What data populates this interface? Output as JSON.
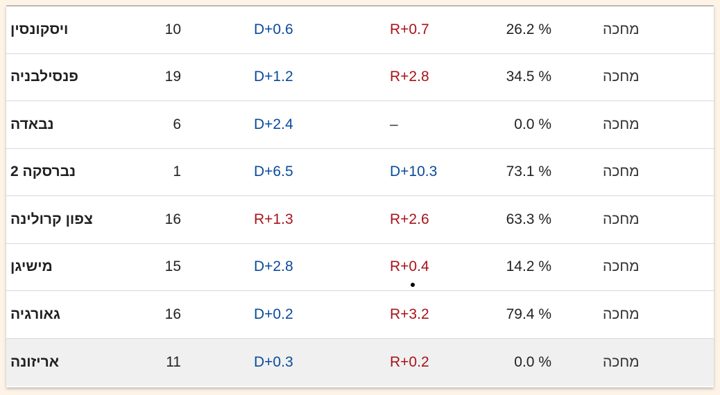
{
  "rows": [
    {
      "state": "ויסקונסין",
      "electoral_votes": "10",
      "margin_2020": "D+0.6",
      "margin_2020_party": "dem",
      "margin_2016": "R+0.7",
      "margin_2016_party": "rep",
      "percent": "26.2 %",
      "status": "מחכה"
    },
    {
      "state": "פנסילבניה",
      "electoral_votes": "19",
      "margin_2020": "D+1.2",
      "margin_2020_party": "dem",
      "margin_2016": "R+2.8",
      "margin_2016_party": "rep",
      "percent": "34.5 %",
      "status": "מחכה"
    },
    {
      "state": "נבאדה",
      "electoral_votes": "6",
      "margin_2020": "D+2.4",
      "margin_2020_party": "dem",
      "margin_2016": "–",
      "margin_2016_party": "neutral",
      "percent": "0.0 %",
      "status": "מחכה"
    },
    {
      "state": "נברסקה 2",
      "electoral_votes": "1",
      "margin_2020": "D+6.5",
      "margin_2020_party": "dem",
      "margin_2016": "D+10.3",
      "margin_2016_party": "dem",
      "percent": "73.1 %",
      "status": "מחכה"
    },
    {
      "state": "צפון קרולינה",
      "electoral_votes": "16",
      "margin_2020": "R+1.3",
      "margin_2020_party": "rep",
      "margin_2016": "R+2.6",
      "margin_2016_party": "rep",
      "percent": "63.3 %",
      "status": "מחכה"
    },
    {
      "state": "מישיגן",
      "electoral_votes": "15",
      "margin_2020": "D+2.8",
      "margin_2020_party": "dem",
      "margin_2016": "R+0.4",
      "margin_2016_party": "rep",
      "percent": "14.2 %",
      "status": "מחכה"
    },
    {
      "state": "גאורגיה",
      "electoral_votes": "16",
      "margin_2020": "D+0.2",
      "margin_2020_party": "dem",
      "margin_2016": "R+3.2",
      "margin_2016_party": "rep",
      "percent": "79.4 %",
      "status": "מחכה"
    },
    {
      "state": "אריזונה",
      "electoral_votes": "11",
      "margin_2020": "D+0.3",
      "margin_2020_party": "dem",
      "margin_2016": "R+0.2",
      "margin_2016_party": "rep",
      "percent": "0.0 %",
      "status": "מחכה"
    }
  ],
  "colors": {
    "dem": "#0a4a9b",
    "rep": "#a8131b",
    "neutral": "#333333",
    "page_background": "#fdf3e7",
    "highlight_row": "#f0f0f0"
  }
}
